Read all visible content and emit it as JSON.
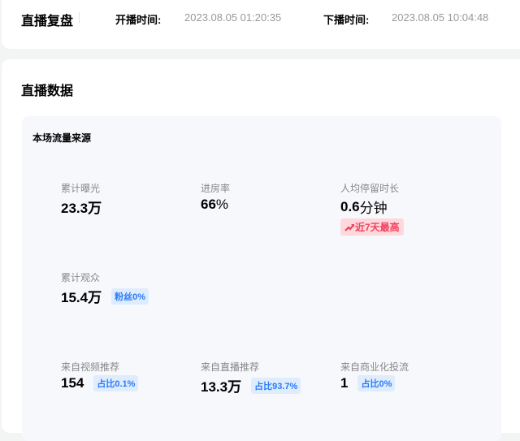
{
  "header": {
    "title": "直播复盘",
    "start_label": "开播时间:",
    "start_time": "2023.08.05 01:20:35",
    "end_label": "下播时间:",
    "end_time": "2023.08.05 10:04:48"
  },
  "section": {
    "title": "直播数据",
    "panel_title": "本场流量来源"
  },
  "metrics": [
    {
      "label": "累计曝光",
      "value": "23.3万"
    },
    {
      "label": "进房率",
      "value": "66",
      "unit": "%"
    },
    {
      "label": "人均停留时长",
      "value": "0.6",
      "unit": "分钟",
      "badge": "近7天最高",
      "badge_icon": "trend-up-icon"
    },
    {
      "label": "累计观众",
      "value": "15.4万",
      "tag": "粉丝0%"
    },
    {
      "label": "来自视频推荐",
      "value": "154",
      "tag": "占比0.1%"
    },
    {
      "label": "来自直播推荐",
      "value": "13.3万",
      "tag": "占比93.7%"
    },
    {
      "label": "来自商业化投流",
      "value": "1",
      "tag": "占比0%"
    }
  ],
  "colors": {
    "accent_blue": "#2b7cf5",
    "highlight_red": "#f0425c",
    "panel_bg": "#f7f8fc"
  }
}
